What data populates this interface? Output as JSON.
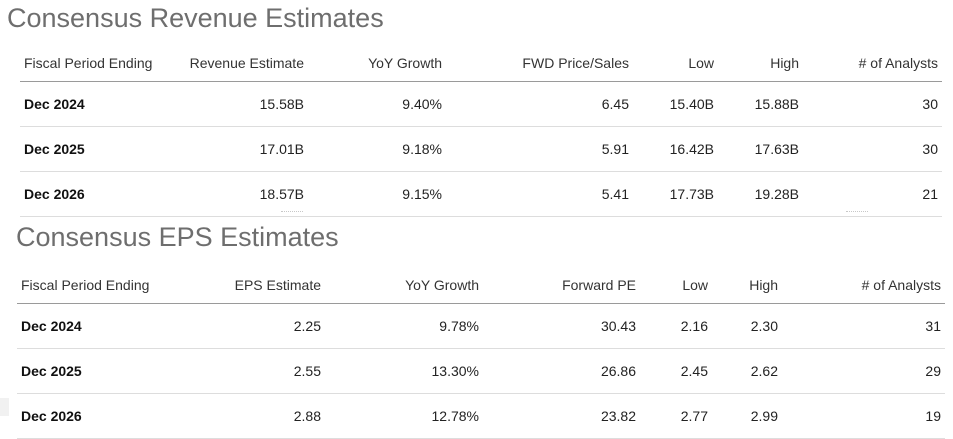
{
  "revenue": {
    "title": "Consensus Revenue Estimates",
    "columns": [
      "Fiscal Period Ending",
      "Revenue Estimate",
      "YoY Growth",
      "FWD Price/Sales",
      "Low",
      "High",
      "# of Analysts"
    ],
    "rows": [
      [
        "Dec 2024",
        "15.58B",
        "9.40%",
        "6.45",
        "15.40B",
        "15.88B",
        "30"
      ],
      [
        "Dec 2025",
        "17.01B",
        "9.18%",
        "5.91",
        "16.42B",
        "17.63B",
        "30"
      ],
      [
        "Dec 2026",
        "18.57B",
        "9.15%",
        "5.41",
        "17.73B",
        "19.28B",
        "21"
      ]
    ]
  },
  "eps": {
    "title": "Consensus EPS Estimates",
    "columns": [
      "Fiscal Period Ending",
      "EPS Estimate",
      "YoY Growth",
      "Forward PE",
      "Low",
      "High",
      "# of Analysts"
    ],
    "rows": [
      [
        "Dec 2024",
        "2.25",
        "9.78%",
        "30.43",
        "2.16",
        "2.30",
        "31"
      ],
      [
        "Dec 2025",
        "2.55",
        "13.30%",
        "26.86",
        "2.45",
        "2.62",
        "29"
      ],
      [
        "Dec 2026",
        "2.88",
        "12.78%",
        "23.82",
        "2.77",
        "2.99",
        "19"
      ]
    ]
  }
}
